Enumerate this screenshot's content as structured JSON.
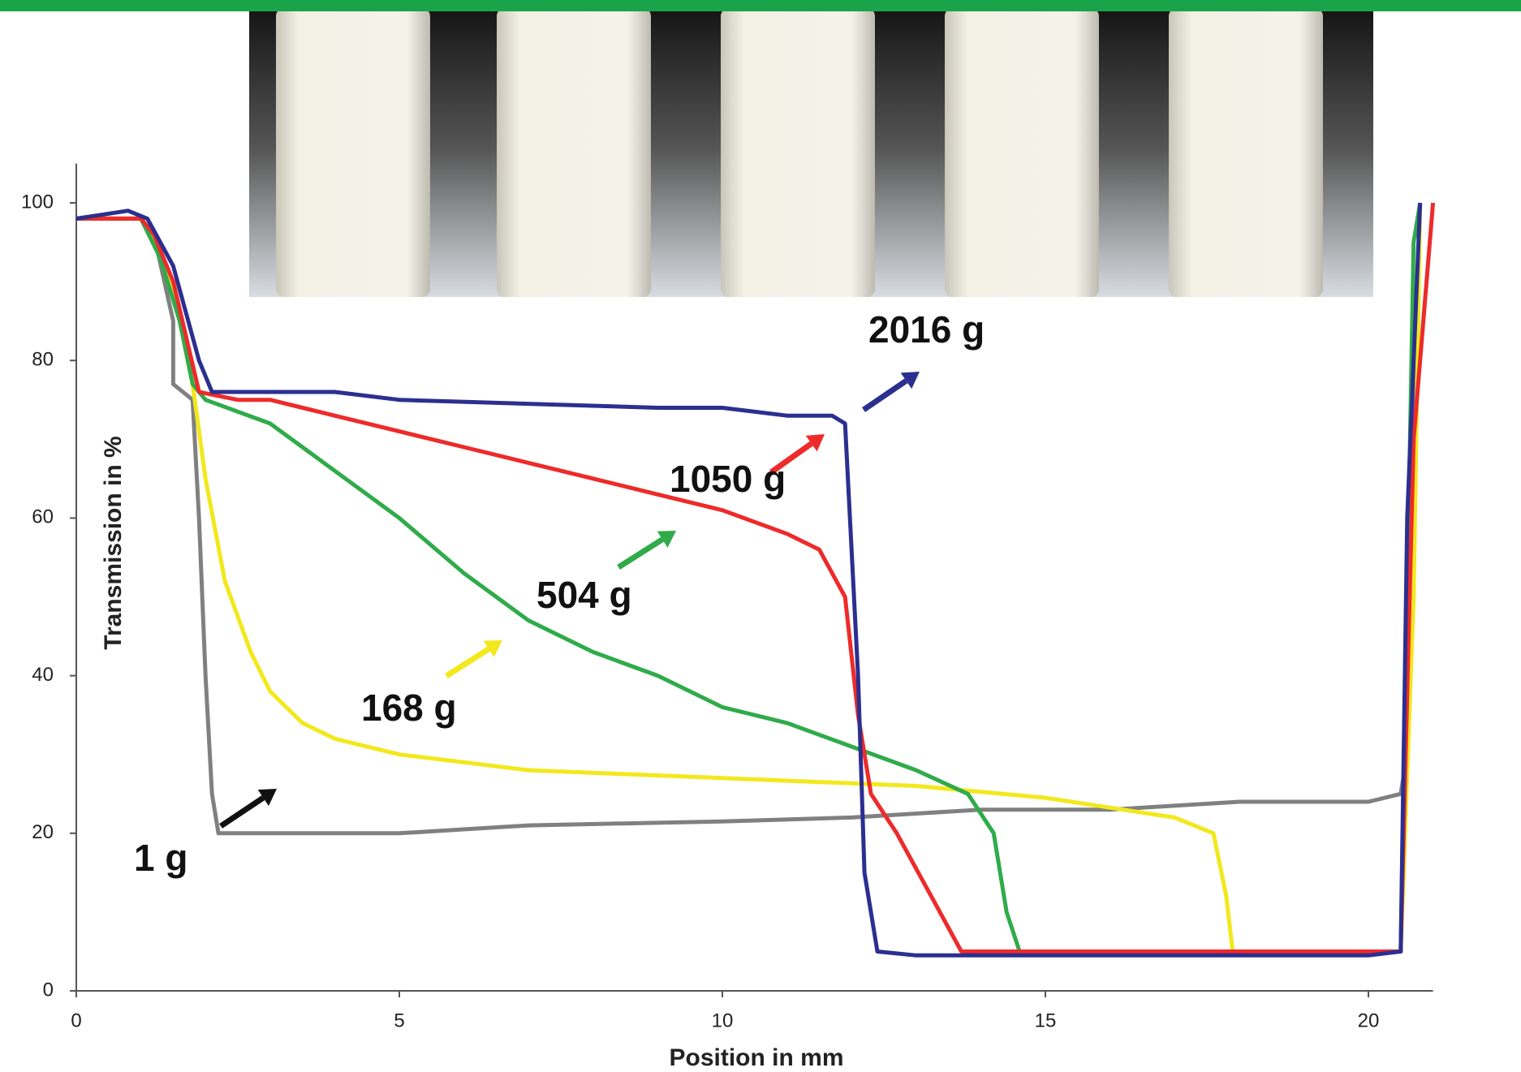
{
  "chart_data": {
    "type": "line",
    "xlabel": "Position in mm",
    "ylabel": "Transmission in %",
    "xlim": [
      0,
      21
    ],
    "ylim": [
      0,
      105
    ],
    "xticks": [
      0,
      5,
      10,
      15,
      20
    ],
    "yticks": [
      0,
      20,
      40,
      60,
      80,
      100
    ],
    "series": [
      {
        "name": "1 g",
        "color": "#808080",
        "x": [
          0,
          1,
          1.2,
          1.5,
          1.5,
          1.8,
          1.9,
          2.0,
          2.1,
          2.2,
          3,
          5,
          7,
          10,
          12,
          14,
          16,
          18,
          20,
          20.5,
          20.6,
          20.8
        ],
        "values": [
          98,
          98,
          96,
          85,
          77,
          75,
          60,
          40,
          25,
          20,
          20,
          20,
          21,
          21.5,
          22,
          23,
          23,
          24,
          24,
          25,
          30,
          100
        ]
      },
      {
        "name": "168 g",
        "color": "#f2e81c",
        "x": [
          0,
          1,
          1.3,
          1.6,
          1.8,
          2,
          2.3,
          2.7,
          3,
          3.5,
          4,
          5,
          7,
          10,
          13,
          15,
          17,
          17.6,
          17.8,
          17.9,
          18.5,
          20,
          20.5,
          20.7,
          20.8
        ],
        "values": [
          98,
          98,
          94,
          85,
          77,
          65,
          52,
          43,
          38,
          34,
          32,
          30,
          28,
          27,
          26,
          24.5,
          22,
          20,
          12,
          5,
          5,
          5,
          5,
          50,
          100
        ]
      },
      {
        "name": "504 g",
        "color": "#2fab4a",
        "x": [
          0,
          1,
          1.3,
          1.6,
          1.8,
          2,
          3,
          4,
          5,
          6,
          7,
          8,
          9,
          10,
          11,
          12,
          13,
          13.8,
          14.2,
          14.4,
          14.6,
          16,
          20,
          20.5,
          20.7,
          20.8
        ],
        "values": [
          98,
          98,
          93,
          85,
          77,
          75,
          72,
          66,
          60,
          53,
          47,
          43,
          40,
          36,
          34,
          31,
          28,
          25,
          20,
          10,
          5,
          5,
          5,
          5,
          95,
          100
        ]
      },
      {
        "name": "1050 g",
        "color": "#ee2a2a",
        "x": [
          0,
          1,
          1.2,
          1.5,
          1.9,
          2.5,
          3,
          4,
          5,
          6,
          7,
          8,
          9,
          10,
          11,
          11.5,
          11.9,
          12.1,
          12.3,
          12.7,
          13.3,
          13.7,
          15,
          20,
          20.5,
          20.7,
          21
        ],
        "values": [
          98,
          98,
          96,
          90,
          76,
          75,
          75,
          73,
          71,
          69,
          67,
          65,
          63,
          61,
          58,
          56,
          50,
          35,
          25,
          20,
          11,
          5,
          5,
          5,
          5,
          70,
          100
        ]
      },
      {
        "name": "2016 g",
        "color": "#2b2f8f",
        "x": [
          0,
          0.8,
          1.1,
          1.5,
          1.9,
          2.1,
          3,
          4,
          5,
          7,
          9,
          10,
          11,
          11.7,
          11.9,
          12.1,
          12.2,
          12.4,
          13,
          14,
          16,
          20,
          20.5,
          20.6,
          20.8
        ],
        "values": [
          98,
          99,
          98,
          92,
          80,
          76,
          76,
          76,
          75,
          74.5,
          74,
          74,
          73,
          73,
          72,
          40,
          15,
          5,
          4.5,
          4.5,
          4.5,
          4.5,
          5,
          60,
          100
        ]
      }
    ]
  }
}
